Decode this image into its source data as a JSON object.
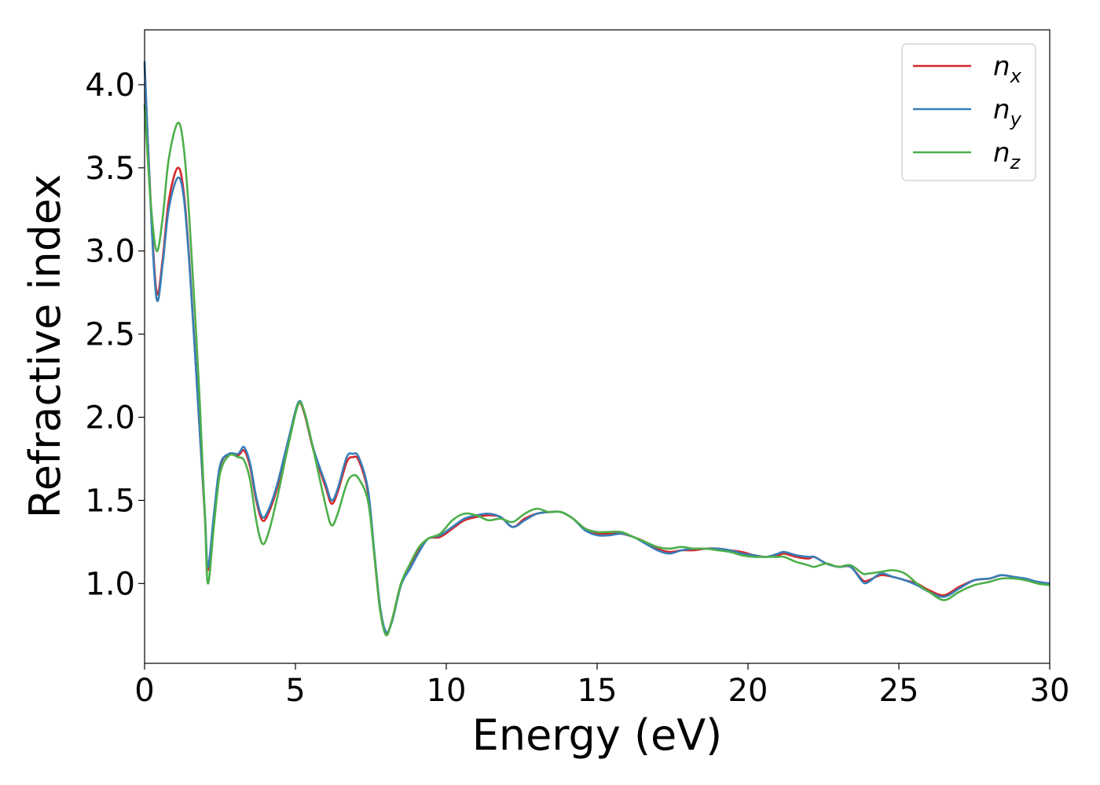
{
  "chart_data": {
    "type": "line",
    "xlabel": "Energy (eV)",
    "ylabel": "Refractive index",
    "xlim": [
      0,
      30
    ],
    "ylim": [
      0.52,
      4.33
    ],
    "xticks": [
      0,
      5,
      10,
      15,
      20,
      25,
      30
    ],
    "xtick_labels": [
      "0",
      "5",
      "10",
      "15",
      "20",
      "25",
      "30"
    ],
    "yticks": [
      1.0,
      1.5,
      2.0,
      2.5,
      3.0,
      3.5,
      4.0
    ],
    "ytick_labels": [
      "1.0",
      "1.5",
      "2.0",
      "2.5",
      "3.0",
      "3.5",
      "4.0"
    ],
    "grid": false,
    "legend_position": "top-right",
    "series": [
      {
        "name": "n",
        "subscript": "x",
        "color": "#d62728",
        "points": [
          [
            0,
            4.12
          ],
          [
            0.2,
            3.3
          ],
          [
            0.4,
            2.75
          ],
          [
            0.6,
            2.95
          ],
          [
            0.8,
            3.3
          ],
          [
            1.1,
            3.5
          ],
          [
            1.3,
            3.35
          ],
          [
            1.5,
            2.9
          ],
          [
            1.8,
            2.0
          ],
          [
            2.0,
            1.4
          ],
          [
            2.1,
            1.08
          ],
          [
            2.3,
            1.4
          ],
          [
            2.5,
            1.7
          ],
          [
            2.8,
            1.78
          ],
          [
            3.1,
            1.77
          ],
          [
            3.3,
            1.8
          ],
          [
            3.5,
            1.7
          ],
          [
            3.7,
            1.5
          ],
          [
            3.9,
            1.38
          ],
          [
            4.1,
            1.42
          ],
          [
            4.4,
            1.58
          ],
          [
            4.8,
            1.88
          ],
          [
            5.1,
            2.08
          ],
          [
            5.3,
            2.02
          ],
          [
            5.6,
            1.8
          ],
          [
            6.0,
            1.58
          ],
          [
            6.2,
            1.48
          ],
          [
            6.4,
            1.55
          ],
          [
            6.7,
            1.73
          ],
          [
            6.9,
            1.76
          ],
          [
            7.1,
            1.74
          ],
          [
            7.4,
            1.55
          ],
          [
            7.6,
            1.2
          ],
          [
            7.8,
            0.85
          ],
          [
            8.0,
            0.7
          ],
          [
            8.2,
            0.78
          ],
          [
            8.5,
            1.0
          ],
          [
            8.8,
            1.1
          ],
          [
            9.1,
            1.2
          ],
          [
            9.4,
            1.27
          ],
          [
            9.8,
            1.28
          ],
          [
            10.2,
            1.33
          ],
          [
            10.6,
            1.38
          ],
          [
            11.0,
            1.4
          ],
          [
            11.4,
            1.41
          ],
          [
            11.8,
            1.4
          ],
          [
            12.2,
            1.34
          ],
          [
            12.6,
            1.39
          ],
          [
            13.0,
            1.42
          ],
          [
            13.4,
            1.43
          ],
          [
            13.8,
            1.43
          ],
          [
            14.2,
            1.39
          ],
          [
            14.6,
            1.33
          ],
          [
            15.0,
            1.3
          ],
          [
            15.4,
            1.3
          ],
          [
            15.8,
            1.3
          ],
          [
            16.2,
            1.28
          ],
          [
            16.6,
            1.25
          ],
          [
            17.0,
            1.21
          ],
          [
            17.4,
            1.19
          ],
          [
            17.8,
            1.2
          ],
          [
            18.2,
            1.2
          ],
          [
            18.6,
            1.21
          ],
          [
            19.0,
            1.21
          ],
          [
            19.4,
            1.2
          ],
          [
            19.8,
            1.19
          ],
          [
            20.2,
            1.17
          ],
          [
            20.6,
            1.16
          ],
          [
            21.0,
            1.17
          ],
          [
            21.2,
            1.18
          ],
          [
            21.6,
            1.16
          ],
          [
            22.0,
            1.15
          ],
          [
            22.2,
            1.16
          ],
          [
            22.6,
            1.12
          ],
          [
            23.0,
            1.1
          ],
          [
            23.4,
            1.1
          ],
          [
            23.8,
            1.02
          ],
          [
            24.0,
            1.02
          ],
          [
            24.4,
            1.05
          ],
          [
            24.8,
            1.04
          ],
          [
            25.2,
            1.02
          ],
          [
            25.6,
            1.0
          ],
          [
            26.0,
            0.96
          ],
          [
            26.5,
            0.93
          ],
          [
            27.0,
            0.98
          ],
          [
            27.5,
            1.02
          ],
          [
            28.0,
            1.03
          ],
          [
            28.4,
            1.05
          ],
          [
            28.8,
            1.04
          ],
          [
            29.2,
            1.02
          ],
          [
            29.6,
            1.01
          ],
          [
            30.0,
            1.0
          ]
        ]
      },
      {
        "name": "n",
        "subscript": "y",
        "color": "#377eb8",
        "points": [
          [
            0,
            4.14
          ],
          [
            0.2,
            3.28
          ],
          [
            0.4,
            2.71
          ],
          [
            0.6,
            2.92
          ],
          [
            0.8,
            3.25
          ],
          [
            1.1,
            3.44
          ],
          [
            1.3,
            3.32
          ],
          [
            1.5,
            2.88
          ],
          [
            1.8,
            2.0
          ],
          [
            2.0,
            1.42
          ],
          [
            2.1,
            1.1
          ],
          [
            2.3,
            1.42
          ],
          [
            2.5,
            1.71
          ],
          [
            2.8,
            1.78
          ],
          [
            3.1,
            1.78
          ],
          [
            3.3,
            1.82
          ],
          [
            3.5,
            1.72
          ],
          [
            3.7,
            1.52
          ],
          [
            3.9,
            1.4
          ],
          [
            4.1,
            1.44
          ],
          [
            4.4,
            1.6
          ],
          [
            4.8,
            1.89
          ],
          [
            5.1,
            2.09
          ],
          [
            5.3,
            2.03
          ],
          [
            5.6,
            1.81
          ],
          [
            6.0,
            1.6
          ],
          [
            6.2,
            1.5
          ],
          [
            6.4,
            1.57
          ],
          [
            6.7,
            1.76
          ],
          [
            6.9,
            1.78
          ],
          [
            7.1,
            1.76
          ],
          [
            7.4,
            1.57
          ],
          [
            7.6,
            1.22
          ],
          [
            7.8,
            0.87
          ],
          [
            8.0,
            0.71
          ],
          [
            8.2,
            0.77
          ],
          [
            8.5,
            0.99
          ],
          [
            8.8,
            1.09
          ],
          [
            9.1,
            1.19
          ],
          [
            9.4,
            1.27
          ],
          [
            9.8,
            1.29
          ],
          [
            10.2,
            1.34
          ],
          [
            10.6,
            1.39
          ],
          [
            11.0,
            1.41
          ],
          [
            11.4,
            1.42
          ],
          [
            11.8,
            1.4
          ],
          [
            12.2,
            1.34
          ],
          [
            12.6,
            1.38
          ],
          [
            13.0,
            1.42
          ],
          [
            13.4,
            1.43
          ],
          [
            13.8,
            1.43
          ],
          [
            14.2,
            1.39
          ],
          [
            14.6,
            1.32
          ],
          [
            15.0,
            1.29
          ],
          [
            15.4,
            1.29
          ],
          [
            15.8,
            1.3
          ],
          [
            16.2,
            1.28
          ],
          [
            16.6,
            1.24
          ],
          [
            17.0,
            1.2
          ],
          [
            17.4,
            1.18
          ],
          [
            17.8,
            1.2
          ],
          [
            18.2,
            1.21
          ],
          [
            18.6,
            1.21
          ],
          [
            19.0,
            1.21
          ],
          [
            19.4,
            1.2
          ],
          [
            19.8,
            1.18
          ],
          [
            20.2,
            1.17
          ],
          [
            20.6,
            1.16
          ],
          [
            21.0,
            1.18
          ],
          [
            21.2,
            1.19
          ],
          [
            21.6,
            1.17
          ],
          [
            22.0,
            1.16
          ],
          [
            22.2,
            1.16
          ],
          [
            22.6,
            1.12
          ],
          [
            23.0,
            1.1
          ],
          [
            23.4,
            1.1
          ],
          [
            23.8,
            1.01
          ],
          [
            24.0,
            1.01
          ],
          [
            24.4,
            1.06
          ],
          [
            24.8,
            1.04
          ],
          [
            25.2,
            1.02
          ],
          [
            25.6,
            0.99
          ],
          [
            26.0,
            0.95
          ],
          [
            26.5,
            0.92
          ],
          [
            27.0,
            0.97
          ],
          [
            27.5,
            1.02
          ],
          [
            28.0,
            1.03
          ],
          [
            28.4,
            1.05
          ],
          [
            28.8,
            1.04
          ],
          [
            29.2,
            1.03
          ],
          [
            29.6,
            1.01
          ],
          [
            30.0,
            1.0
          ]
        ]
      },
      {
        "name": "n",
        "subscript": "z",
        "color": "#4daf4a",
        "points": [
          [
            0,
            3.88
          ],
          [
            0.2,
            3.3
          ],
          [
            0.4,
            3.0
          ],
          [
            0.6,
            3.2
          ],
          [
            0.8,
            3.55
          ],
          [
            1.1,
            3.77
          ],
          [
            1.3,
            3.62
          ],
          [
            1.5,
            3.15
          ],
          [
            1.8,
            2.2
          ],
          [
            2.0,
            1.4
          ],
          [
            2.1,
            1.0
          ],
          [
            2.3,
            1.35
          ],
          [
            2.5,
            1.66
          ],
          [
            2.8,
            1.77
          ],
          [
            3.1,
            1.76
          ],
          [
            3.3,
            1.74
          ],
          [
            3.5,
            1.62
          ],
          [
            3.7,
            1.38
          ],
          [
            3.9,
            1.24
          ],
          [
            4.1,
            1.3
          ],
          [
            4.4,
            1.52
          ],
          [
            4.8,
            1.86
          ],
          [
            5.1,
            2.08
          ],
          [
            5.3,
            2.03
          ],
          [
            5.6,
            1.8
          ],
          [
            6.0,
            1.47
          ],
          [
            6.2,
            1.35
          ],
          [
            6.4,
            1.42
          ],
          [
            6.7,
            1.6
          ],
          [
            6.9,
            1.65
          ],
          [
            7.1,
            1.63
          ],
          [
            7.4,
            1.5
          ],
          [
            7.6,
            1.2
          ],
          [
            7.8,
            0.85
          ],
          [
            8.0,
            0.69
          ],
          [
            8.2,
            0.78
          ],
          [
            8.5,
            1.0
          ],
          [
            8.8,
            1.12
          ],
          [
            9.1,
            1.22
          ],
          [
            9.4,
            1.27
          ],
          [
            9.8,
            1.3
          ],
          [
            10.2,
            1.38
          ],
          [
            10.6,
            1.42
          ],
          [
            11.0,
            1.41
          ],
          [
            11.4,
            1.38
          ],
          [
            11.8,
            1.39
          ],
          [
            12.2,
            1.37
          ],
          [
            12.6,
            1.42
          ],
          [
            13.0,
            1.45
          ],
          [
            13.4,
            1.43
          ],
          [
            13.8,
            1.43
          ],
          [
            14.2,
            1.39
          ],
          [
            14.6,
            1.33
          ],
          [
            15.0,
            1.31
          ],
          [
            15.4,
            1.31
          ],
          [
            15.8,
            1.31
          ],
          [
            16.2,
            1.28
          ],
          [
            16.6,
            1.25
          ],
          [
            17.0,
            1.22
          ],
          [
            17.4,
            1.21
          ],
          [
            17.8,
            1.22
          ],
          [
            18.2,
            1.21
          ],
          [
            18.6,
            1.21
          ],
          [
            19.0,
            1.2
          ],
          [
            19.4,
            1.19
          ],
          [
            19.8,
            1.17
          ],
          [
            20.2,
            1.16
          ],
          [
            20.6,
            1.16
          ],
          [
            21.0,
            1.16
          ],
          [
            21.2,
            1.16
          ],
          [
            21.6,
            1.13
          ],
          [
            22.0,
            1.11
          ],
          [
            22.2,
            1.1
          ],
          [
            22.6,
            1.12
          ],
          [
            23.0,
            1.1
          ],
          [
            23.4,
            1.11
          ],
          [
            23.8,
            1.06
          ],
          [
            24.0,
            1.06
          ],
          [
            24.4,
            1.07
          ],
          [
            24.8,
            1.08
          ],
          [
            25.2,
            1.06
          ],
          [
            25.6,
            1.0
          ],
          [
            26.0,
            0.95
          ],
          [
            26.5,
            0.9
          ],
          [
            27.0,
            0.95
          ],
          [
            27.5,
            0.99
          ],
          [
            28.0,
            1.01
          ],
          [
            28.4,
            1.03
          ],
          [
            28.8,
            1.03
          ],
          [
            29.2,
            1.02
          ],
          [
            29.6,
            1.0
          ],
          [
            30.0,
            0.99
          ]
        ]
      }
    ]
  }
}
